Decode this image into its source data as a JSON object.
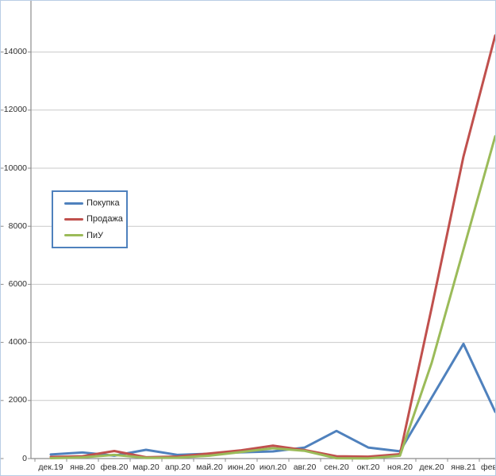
{
  "chart_data": {
    "type": "line",
    "categories": [
      "дек.19",
      "янв.20",
      "фев.20",
      "мар.20",
      "апр.20",
      "май.20",
      "июн.20",
      "июл.20",
      "авг.20",
      "сен.20",
      "окт.20",
      "ноя.20",
      "дек.20",
      "янв.21",
      "фев"
    ],
    "series": [
      {
        "name": "Покупка",
        "color": "#4f81bd",
        "values": [
          140,
          210,
          100,
          300,
          125,
          165,
          215,
          245,
          380,
          950,
          380,
          250,
          2100,
          3950,
          1610
        ]
      },
      {
        "name": "Продажа",
        "color": "#c0504d",
        "values": [
          55,
          80,
          260,
          45,
          70,
          175,
          285,
          445,
          290,
          80,
          65,
          150,
          5200,
          10400,
          14570
        ]
      },
      {
        "name": "ПиУ",
        "color": "#9bbb59",
        "values": [
          15,
          40,
          125,
          25,
          30,
          100,
          225,
          355,
          265,
          10,
          5,
          100,
          3300,
          7200,
          11100
        ]
      }
    ],
    "title": "",
    "xlabel": "",
    "ylabel": "",
    "y_ticks": [
      0,
      2000,
      4000,
      6000,
      8000,
      10000,
      12000,
      14000
    ],
    "ylim": [
      0,
      15700
    ],
    "grid": true,
    "legend_position": "inside-left",
    "axis_color": "#8c8c8c",
    "grid_color": "#c9c9c9",
    "legend_border_color": "#4f81bd",
    "outer_border_color": "#b9cde5"
  }
}
